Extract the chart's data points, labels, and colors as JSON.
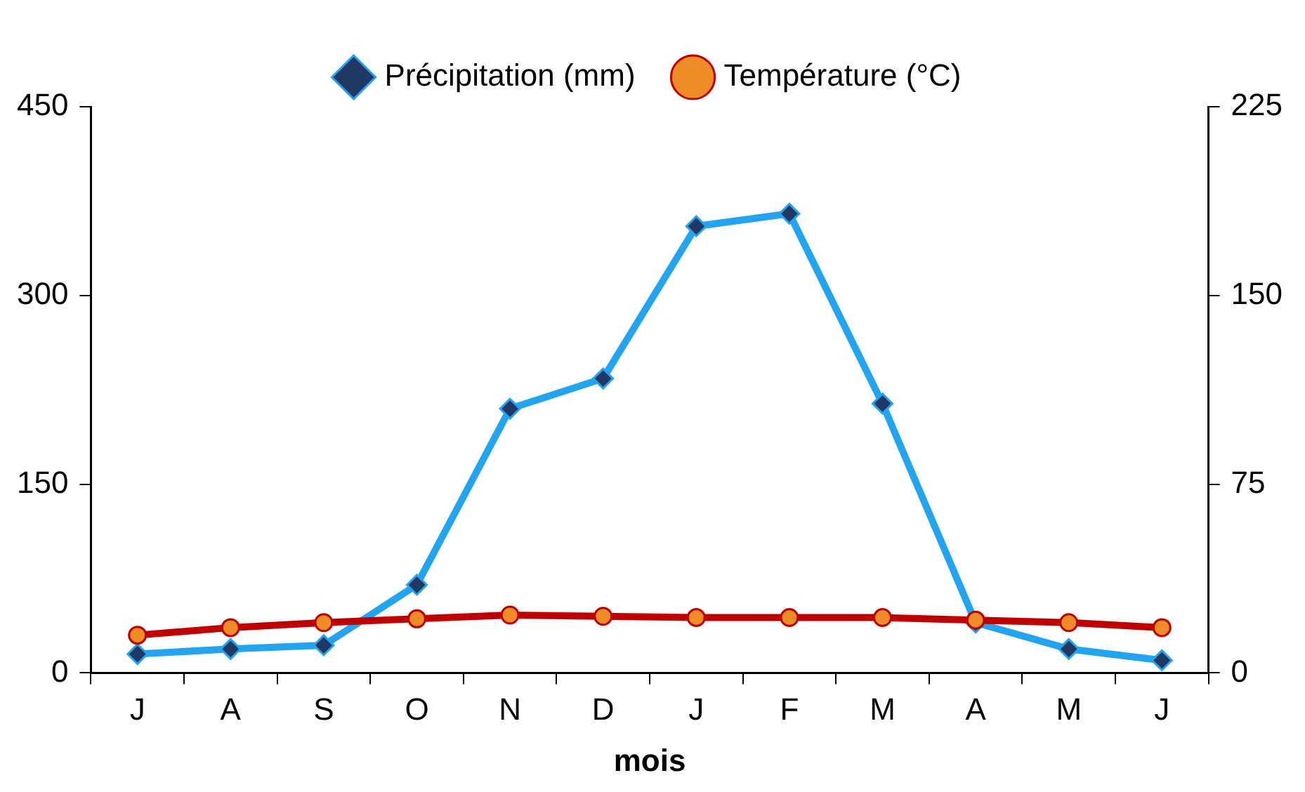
{
  "chart_data": {
    "type": "line",
    "xlabel": "mois",
    "categories": [
      "J",
      "A",
      "S",
      "O",
      "N",
      "D",
      "J",
      "F",
      "M",
      "A",
      "M",
      "J"
    ],
    "series": [
      {
        "name": "Précipitation (mm)",
        "color": "#22a4f0",
        "marker": "diamond",
        "values": [
          15,
          19,
          22,
          70,
          210,
          234,
          355,
          365,
          214,
          40,
          19,
          10
        ]
      },
      {
        "name": "Température (°C)",
        "color": "#c00000",
        "marker": "circle",
        "axis": "y2",
        "values": [
          15,
          18,
          20,
          21.5,
          23,
          22.5,
          22,
          22,
          22,
          21,
          20,
          18
        ]
      }
    ],
    "ylim": [
      0,
      450
    ],
    "yticks": [
      0,
      150,
      300,
      450
    ],
    "y2lim": [
      0,
      225
    ],
    "y2ticks": [
      0,
      75,
      150,
      225
    ],
    "grid": false,
    "legend": "top"
  }
}
